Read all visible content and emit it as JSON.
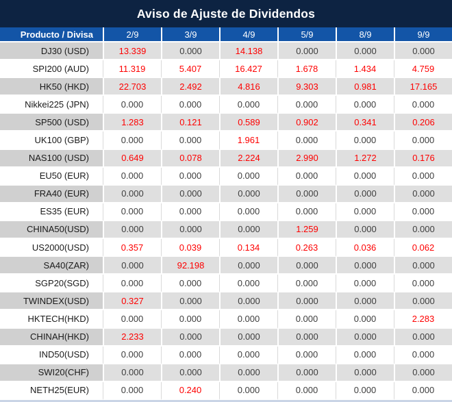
{
  "header": {
    "title": "Aviso de Ajuste de Dividendos"
  },
  "colors": {
    "title_bar_bg": "#0d2342",
    "header_row_bg": "#1355a7",
    "row_alt_product_bg": "#d0d0d0",
    "row_alt_value_bg": "#dfdfdf",
    "row_bg": "#ffffff",
    "value_nonzero": "#fe0000",
    "value_zero": "#3d3d3d",
    "bottom_strip": "#c9d4e6"
  },
  "table": {
    "columns": [
      "Producto / Divisa",
      "2/9",
      "3/9",
      "4/9",
      "5/9",
      "8/9",
      "9/9"
    ],
    "rows": [
      {
        "product": "DJ30 (USD)",
        "values": [
          "13.339",
          "0.000",
          "14.138",
          "0.000",
          "0.000",
          "0.000"
        ]
      },
      {
        "product": "SPI200 (AUD)",
        "values": [
          "11.319",
          "5.407",
          "16.427",
          "1.678",
          "1.434",
          "4.759"
        ]
      },
      {
        "product": "HK50 (HKD)",
        "values": [
          "22.703",
          "2.492",
          "4.816",
          "9.303",
          "0.981",
          "17.165"
        ]
      },
      {
        "product": "Nikkei225 (JPN)",
        "values": [
          "0.000",
          "0.000",
          "0.000",
          "0.000",
          "0.000",
          "0.000"
        ]
      },
      {
        "product": "SP500 (USD)",
        "values": [
          "1.283",
          "0.121",
          "0.589",
          "0.902",
          "0.341",
          "0.206"
        ]
      },
      {
        "product": "UK100 (GBP)",
        "values": [
          "0.000",
          "0.000",
          "1.961",
          "0.000",
          "0.000",
          "0.000"
        ]
      },
      {
        "product": "NAS100 (USD)",
        "values": [
          "0.649",
          "0.078",
          "2.224",
          "2.990",
          "1.272",
          "0.176"
        ]
      },
      {
        "product": "EU50 (EUR)",
        "values": [
          "0.000",
          "0.000",
          "0.000",
          "0.000",
          "0.000",
          "0.000"
        ]
      },
      {
        "product": "FRA40 (EUR)",
        "values": [
          "0.000",
          "0.000",
          "0.000",
          "0.000",
          "0.000",
          "0.000"
        ]
      },
      {
        "product": "ES35 (EUR)",
        "values": [
          "0.000",
          "0.000",
          "0.000",
          "0.000",
          "0.000",
          "0.000"
        ]
      },
      {
        "product": "CHINA50(USD)",
        "values": [
          "0.000",
          "0.000",
          "0.000",
          "1.259",
          "0.000",
          "0.000"
        ]
      },
      {
        "product": "US2000(USD)",
        "values": [
          "0.357",
          "0.039",
          "0.134",
          "0.263",
          "0.036",
          "0.062"
        ]
      },
      {
        "product": "SA40(ZAR)",
        "values": [
          "0.000",
          "92.198",
          "0.000",
          "0.000",
          "0.000",
          "0.000"
        ]
      },
      {
        "product": "SGP20(SGD)",
        "values": [
          "0.000",
          "0.000",
          "0.000",
          "0.000",
          "0.000",
          "0.000"
        ]
      },
      {
        "product": "TWINDEX(USD)",
        "values": [
          "0.327",
          "0.000",
          "0.000",
          "0.000",
          "0.000",
          "0.000"
        ]
      },
      {
        "product": "HKTECH(HKD)",
        "values": [
          "0.000",
          "0.000",
          "0.000",
          "0.000",
          "0.000",
          "2.283"
        ]
      },
      {
        "product": "CHINAH(HKD)",
        "values": [
          "2.233",
          "0.000",
          "0.000",
          "0.000",
          "0.000",
          "0.000"
        ]
      },
      {
        "product": "IND50(USD)",
        "values": [
          "0.000",
          "0.000",
          "0.000",
          "0.000",
          "0.000",
          "0.000"
        ]
      },
      {
        "product": "SWI20(CHF)",
        "values": [
          "0.000",
          "0.000",
          "0.000",
          "0.000",
          "0.000",
          "0.000"
        ]
      },
      {
        "product": "NETH25(EUR)",
        "values": [
          "0.000",
          "0.240",
          "0.000",
          "0.000",
          "0.000",
          "0.000"
        ]
      }
    ]
  },
  "chart_data": {
    "type": "table",
    "title": "Aviso de Ajuste de Dividendos",
    "columns": [
      "Producto / Divisa",
      "2/9",
      "3/9",
      "4/9",
      "5/9",
      "8/9",
      "9/9"
    ],
    "rows": [
      [
        "DJ30 (USD)",
        13.339,
        0.0,
        14.138,
        0.0,
        0.0,
        0.0
      ],
      [
        "SPI200 (AUD)",
        11.319,
        5.407,
        16.427,
        1.678,
        1.434,
        4.759
      ],
      [
        "HK50 (HKD)",
        22.703,
        2.492,
        4.816,
        9.303,
        0.981,
        17.165
      ],
      [
        "Nikkei225 (JPN)",
        0.0,
        0.0,
        0.0,
        0.0,
        0.0,
        0.0
      ],
      [
        "SP500 (USD)",
        1.283,
        0.121,
        0.589,
        0.902,
        0.341,
        0.206
      ],
      [
        "UK100 (GBP)",
        0.0,
        0.0,
        1.961,
        0.0,
        0.0,
        0.0
      ],
      [
        "NAS100 (USD)",
        0.649,
        0.078,
        2.224,
        2.99,
        1.272,
        0.176
      ],
      [
        "EU50 (EUR)",
        0.0,
        0.0,
        0.0,
        0.0,
        0.0,
        0.0
      ],
      [
        "FRA40 (EUR)",
        0.0,
        0.0,
        0.0,
        0.0,
        0.0,
        0.0
      ],
      [
        "ES35 (EUR)",
        0.0,
        0.0,
        0.0,
        0.0,
        0.0,
        0.0
      ],
      [
        "CHINA50(USD)",
        0.0,
        0.0,
        0.0,
        1.259,
        0.0,
        0.0
      ],
      [
        "US2000(USD)",
        0.357,
        0.039,
        0.134,
        0.263,
        0.036,
        0.062
      ],
      [
        "SA40(ZAR)",
        0.0,
        92.198,
        0.0,
        0.0,
        0.0,
        0.0
      ],
      [
        "SGP20(SGD)",
        0.0,
        0.0,
        0.0,
        0.0,
        0.0,
        0.0
      ],
      [
        "TWINDEX(USD)",
        0.327,
        0.0,
        0.0,
        0.0,
        0.0,
        0.0
      ],
      [
        "HKTECH(HKD)",
        0.0,
        0.0,
        0.0,
        0.0,
        0.0,
        2.283
      ],
      [
        "CHINAH(HKD)",
        2.233,
        0.0,
        0.0,
        0.0,
        0.0,
        0.0
      ],
      [
        "IND50(USD)",
        0.0,
        0.0,
        0.0,
        0.0,
        0.0,
        0.0
      ],
      [
        "SWI20(CHF)",
        0.0,
        0.0,
        0.0,
        0.0,
        0.0,
        0.0
      ],
      [
        "NETH25(EUR)",
        0.0,
        0.24,
        0.0,
        0.0,
        0.0,
        0.0
      ]
    ],
    "notes": "Non-zero values rendered in red; zeros in dark gray. Legend/grid: alternating gray/white rows, blue header band."
  }
}
